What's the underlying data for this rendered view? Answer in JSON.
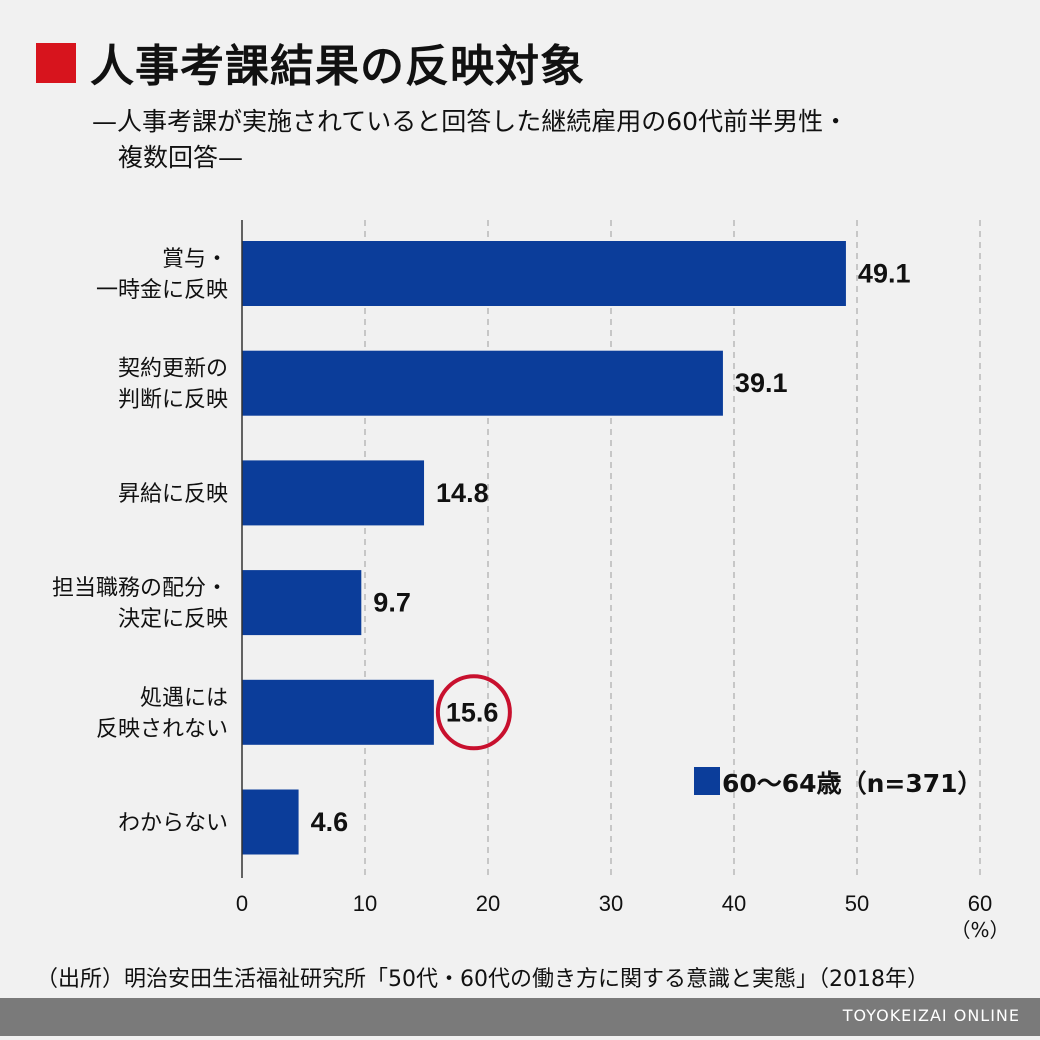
{
  "title": "人事考課結果の反映対象",
  "subtitle_line1": "—人事考課が実施されていると回答した継続雇用の60代前半男性・",
  "subtitle_line2": "複数回答—",
  "chart_data": {
    "type": "bar",
    "orientation": "horizontal",
    "categories": [
      [
        "賞与・",
        "一時金に反映"
      ],
      [
        "契約更新の",
        "判断に反映"
      ],
      [
        "昇給に反映"
      ],
      [
        "担当職務の配分・",
        "決定に反映"
      ],
      [
        "処遇には",
        "反映されない"
      ],
      [
        "わからない"
      ]
    ],
    "series": [
      {
        "name": "60〜64歳（n=371）",
        "values": [
          49.1,
          39.1,
          14.8,
          9.7,
          15.6,
          4.6
        ]
      }
    ],
    "value_labels": [
      "49.1",
      "39.1",
      "14.8",
      "9.7",
      "15.6",
      "4.6"
    ],
    "highlighted_index": 4,
    "xlim": [
      0,
      60
    ],
    "xticks": [
      0,
      10,
      20,
      30,
      40,
      50,
      60
    ],
    "xunit": "（%）",
    "grid": true,
    "legend_position": "bottom-right"
  },
  "colors": {
    "bar": "#0b3d9a",
    "title_marker": "#d7141d",
    "highlight_circle": "#c8102e",
    "grid": "#b9b9b9"
  },
  "source": "（出所）明治安田生活福祉研究所「50代・60代の働き方に関する意識と実態」（2018年）",
  "brand": "TOYOKEIZAI ONLINE"
}
